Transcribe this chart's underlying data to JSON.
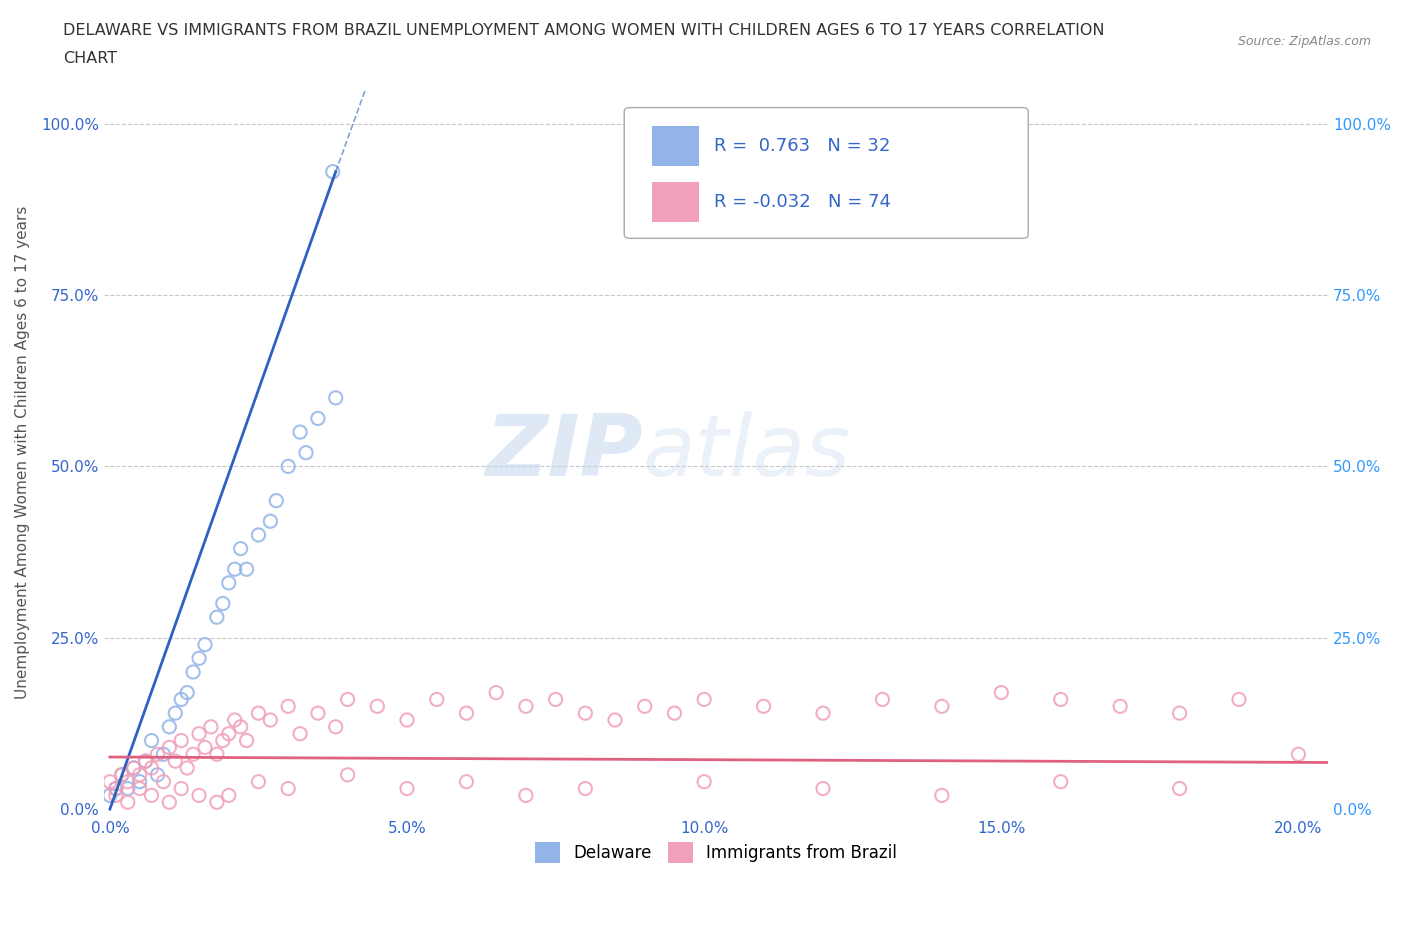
{
  "title_line1": "DELAWARE VS IMMIGRANTS FROM BRAZIL UNEMPLOYMENT AMONG WOMEN WITH CHILDREN AGES 6 TO 17 YEARS CORRELATION",
  "title_line2": "CHART",
  "source_text": "Source: ZipAtlas.com",
  "ylabel": "Unemployment Among Women with Children Ages 6 to 17 years",
  "xlim": [
    -0.001,
    0.205
  ],
  "ylim": [
    -0.01,
    1.05
  ],
  "xtick_labels": [
    "0.0%",
    "5.0%",
    "10.0%",
    "15.0%",
    "20.0%"
  ],
  "xtick_vals": [
    0.0,
    0.05,
    0.1,
    0.15,
    0.2
  ],
  "ytick_labels": [
    "0.0%",
    "25.0%",
    "50.0%",
    "75.0%",
    "100.0%"
  ],
  "ytick_vals": [
    0.0,
    0.25,
    0.5,
    0.75,
    1.0
  ],
  "delaware_color": "#92b4e8",
  "brazil_color": "#f0a0b8",
  "trend_delaware_color": "#3060c0",
  "trend_brazil_color": "#e06080",
  "watermark_text_1": "ZIP",
  "watermark_text_2": "atlas",
  "r_delaware": 0.763,
  "n_delaware": 32,
  "r_brazil": -0.032,
  "n_brazil": 74,
  "delaware_x": [
    0.0,
    0.001,
    0.002,
    0.003,
    0.004,
    0.005,
    0.006,
    0.007,
    0.008,
    0.009,
    0.01,
    0.011,
    0.012,
    0.013,
    0.014,
    0.015,
    0.016,
    0.018,
    0.019,
    0.02,
    0.021,
    0.022,
    0.023,
    0.025,
    0.027,
    0.028,
    0.03,
    0.032,
    0.033,
    0.035,
    0.038,
    0.0375
  ],
  "delaware_y": [
    0.02,
    0.03,
    0.05,
    0.03,
    0.06,
    0.04,
    0.07,
    0.1,
    0.05,
    0.08,
    0.12,
    0.14,
    0.16,
    0.17,
    0.2,
    0.22,
    0.24,
    0.28,
    0.3,
    0.33,
    0.35,
    0.38,
    0.35,
    0.4,
    0.42,
    0.45,
    0.5,
    0.55,
    0.52,
    0.57,
    0.6,
    0.93
  ],
  "brazil_x": [
    0.0,
    0.001,
    0.002,
    0.003,
    0.004,
    0.005,
    0.006,
    0.007,
    0.008,
    0.009,
    0.01,
    0.011,
    0.012,
    0.013,
    0.014,
    0.015,
    0.016,
    0.017,
    0.018,
    0.019,
    0.02,
    0.021,
    0.022,
    0.023,
    0.025,
    0.027,
    0.03,
    0.032,
    0.035,
    0.038,
    0.04,
    0.045,
    0.05,
    0.055,
    0.06,
    0.065,
    0.07,
    0.075,
    0.08,
    0.085,
    0.09,
    0.095,
    0.1,
    0.11,
    0.12,
    0.13,
    0.14,
    0.15,
    0.16,
    0.17,
    0.18,
    0.19,
    0.2,
    0.001,
    0.003,
    0.005,
    0.007,
    0.01,
    0.012,
    0.015,
    0.018,
    0.02,
    0.025,
    0.03,
    0.04,
    0.05,
    0.06,
    0.07,
    0.08,
    0.1,
    0.12,
    0.14,
    0.16,
    0.18
  ],
  "brazil_y": [
    0.04,
    0.03,
    0.05,
    0.04,
    0.06,
    0.05,
    0.07,
    0.06,
    0.08,
    0.04,
    0.09,
    0.07,
    0.1,
    0.06,
    0.08,
    0.11,
    0.09,
    0.12,
    0.08,
    0.1,
    0.11,
    0.13,
    0.12,
    0.1,
    0.14,
    0.13,
    0.15,
    0.11,
    0.14,
    0.12,
    0.16,
    0.15,
    0.13,
    0.16,
    0.14,
    0.17,
    0.15,
    0.16,
    0.14,
    0.13,
    0.15,
    0.14,
    0.16,
    0.15,
    0.14,
    0.16,
    0.15,
    0.17,
    0.16,
    0.15,
    0.14,
    0.16,
    0.08,
    0.02,
    0.01,
    0.03,
    0.02,
    0.01,
    0.03,
    0.02,
    0.01,
    0.02,
    0.04,
    0.03,
    0.05,
    0.03,
    0.04,
    0.02,
    0.03,
    0.04,
    0.03,
    0.02,
    0.04,
    0.03
  ],
  "trend_del_x0": 0.0,
  "trend_del_y0": 0.0,
  "trend_del_x1": 0.038,
  "trend_del_y1": 0.93,
  "trend_del_dash_x1": 0.043,
  "trend_del_dash_y1": 1.05,
  "trend_bra_x0": 0.0,
  "trend_bra_y0": 0.076,
  "trend_bra_x1": 0.205,
  "trend_bra_y1": 0.068,
  "background_color": "#ffffff",
  "grid_color": "#c8c8c8",
  "title_color": "#333333",
  "axis_label_color": "#555555",
  "left_tick_color": "#3366cc",
  "right_tick_color": "#3399ff"
}
